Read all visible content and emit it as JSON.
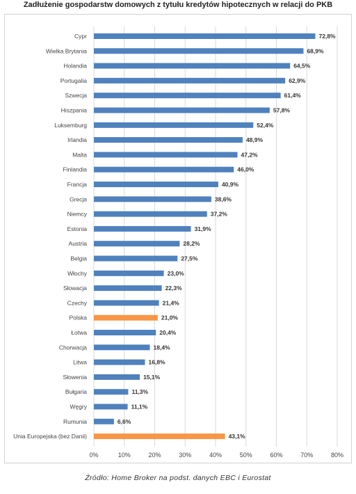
{
  "chart_data": {
    "type": "bar",
    "orientation": "horizontal",
    "title": "Zadłużenie gospodarstw domowych z tytułu kredytów hipotecznych w relacji do PKB",
    "categories": [
      "Cypr",
      "Wielka Brytania",
      "Holandia",
      "Portugalia",
      "Szwecja",
      "Hiszpania",
      "Luksemburg",
      "Irlandia",
      "Malta",
      "Finlandia",
      "Francja",
      "Grecja",
      "Niemcy",
      "Estonia",
      "Austria",
      "Belgia",
      "Włochy",
      "Słowacja",
      "Czechy",
      "Polska",
      "Łotwa",
      "Chorwacja",
      "Litwa",
      "Słowenia",
      "Bułgaria",
      "Węgry",
      "Rumunia",
      "Unia Europejska (bez Danii)"
    ],
    "values": [
      72.8,
      68.9,
      64.5,
      62.9,
      61.4,
      57.8,
      52.4,
      48.9,
      47.2,
      46.0,
      40.9,
      38.6,
      37.2,
      31.9,
      28.2,
      27.5,
      23.0,
      22.3,
      21.4,
      21.0,
      20.4,
      18.4,
      16.8,
      15.1,
      11.3,
      11.1,
      6.6,
      43.1
    ],
    "value_labels": [
      "72,8%",
      "68,9%",
      "64,5%",
      "62,9%",
      "61,4%",
      "57,8%",
      "52,4%",
      "48,9%",
      "47,2%",
      "46,0%",
      "40,9%",
      "38,6%",
      "37,2%",
      "31,9%",
      "28,2%",
      "27,5%",
      "23,0%",
      "22,3%",
      "21,4%",
      "21,0%",
      "20,4%",
      "18,4%",
      "16,8%",
      "15,1%",
      "11,3%",
      "11,1%",
      "6,6%",
      "43,1%"
    ],
    "highlighted": [
      "Polska",
      "Unia Europejska (bez Danii)"
    ],
    "xlim": [
      0,
      80
    ],
    "x_ticks": [
      "0%",
      "10%",
      "20%",
      "30%",
      "40%",
      "50%",
      "60%",
      "70%",
      "80%"
    ],
    "grid": true,
    "colors": {
      "default": "#4F81BD",
      "highlight": "#F79646"
    }
  },
  "source": "Źródło: Home Broker na podst. danych EBC i Eurostat"
}
